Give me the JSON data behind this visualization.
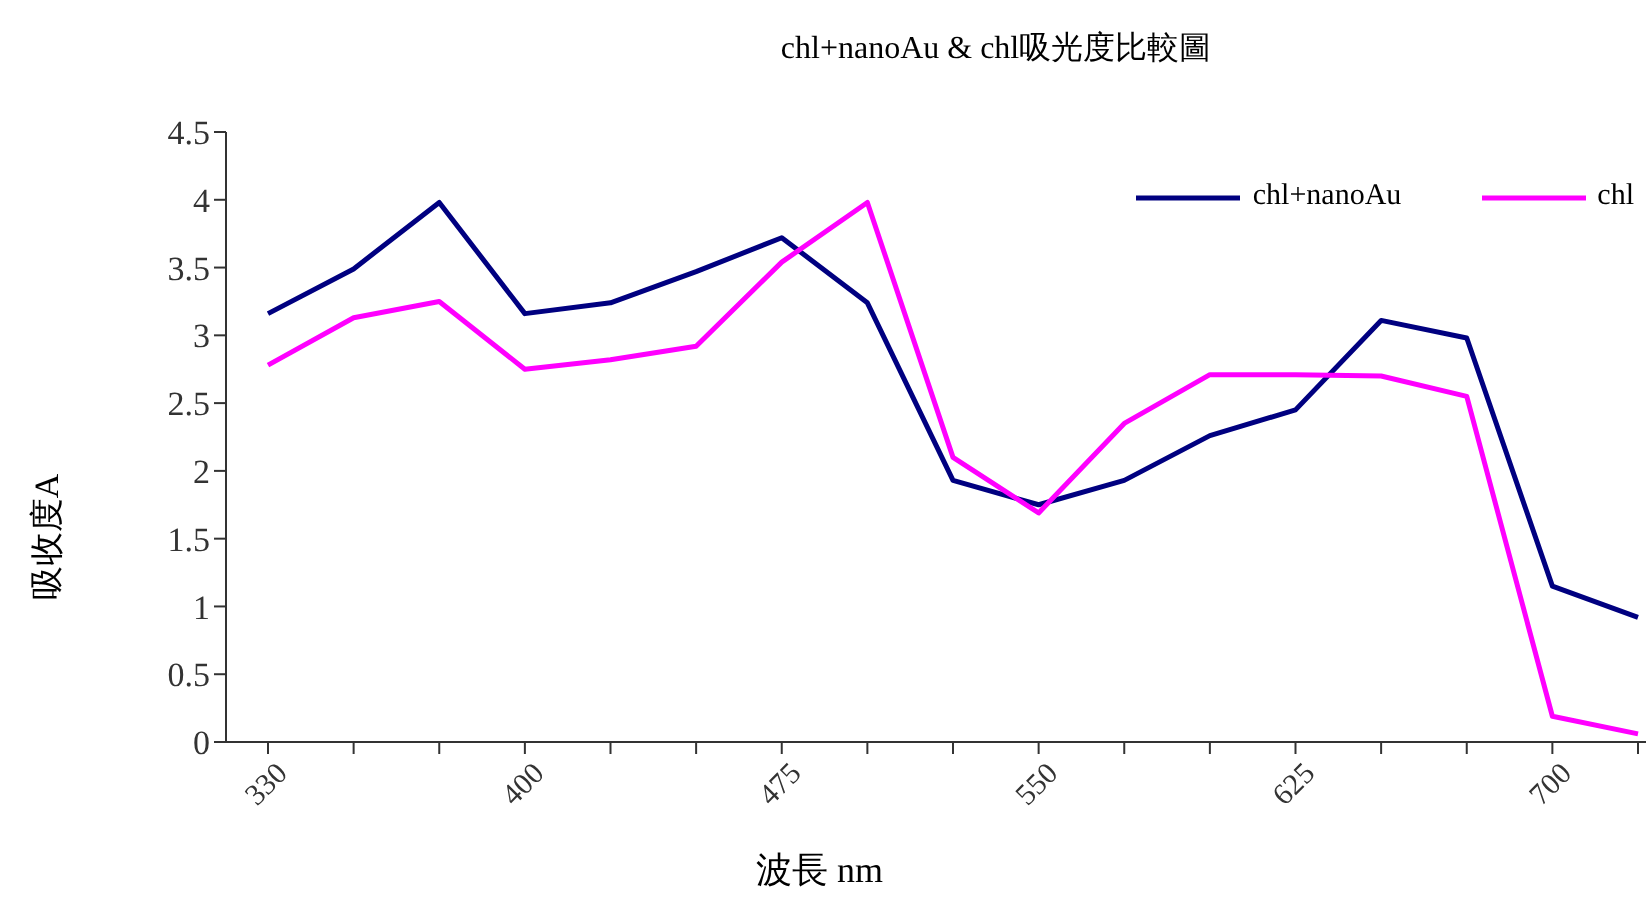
{
  "chart_data": {
    "type": "line",
    "title": "chl+nanoAu & chl吸光度比較圖",
    "xlabel": "波長 nm",
    "ylabel": "吸收度A",
    "categories": [
      "330",
      null,
      null,
      "400",
      null,
      null,
      "475",
      null,
      null,
      "550",
      null,
      null,
      "625",
      null,
      null,
      "700",
      null
    ],
    "series": [
      {
        "name": "chl+nanoAu",
        "color": "#000080",
        "values": [
          3.16,
          3.49,
          3.98,
          3.16,
          3.24,
          3.47,
          3.72,
          3.24,
          1.93,
          1.75,
          1.93,
          2.26,
          2.45,
          3.11,
          2.98,
          1.15,
          0.92
        ]
      },
      {
        "name": "chl",
        "color": "#ff00ff",
        "values": [
          2.78,
          3.13,
          3.25,
          2.75,
          2.82,
          2.92,
          3.54,
          3.98,
          2.1,
          1.69,
          2.35,
          2.71,
          2.71,
          2.7,
          2.55,
          0.19,
          0.06
        ]
      }
    ],
    "ylim": [
      0,
      4.5
    ],
    "yticks": [
      0,
      0.5,
      1,
      1.5,
      2,
      2.5,
      3,
      3.5,
      4,
      4.5
    ],
    "grid": false,
    "legend": "top right",
    "marker": "none"
  }
}
